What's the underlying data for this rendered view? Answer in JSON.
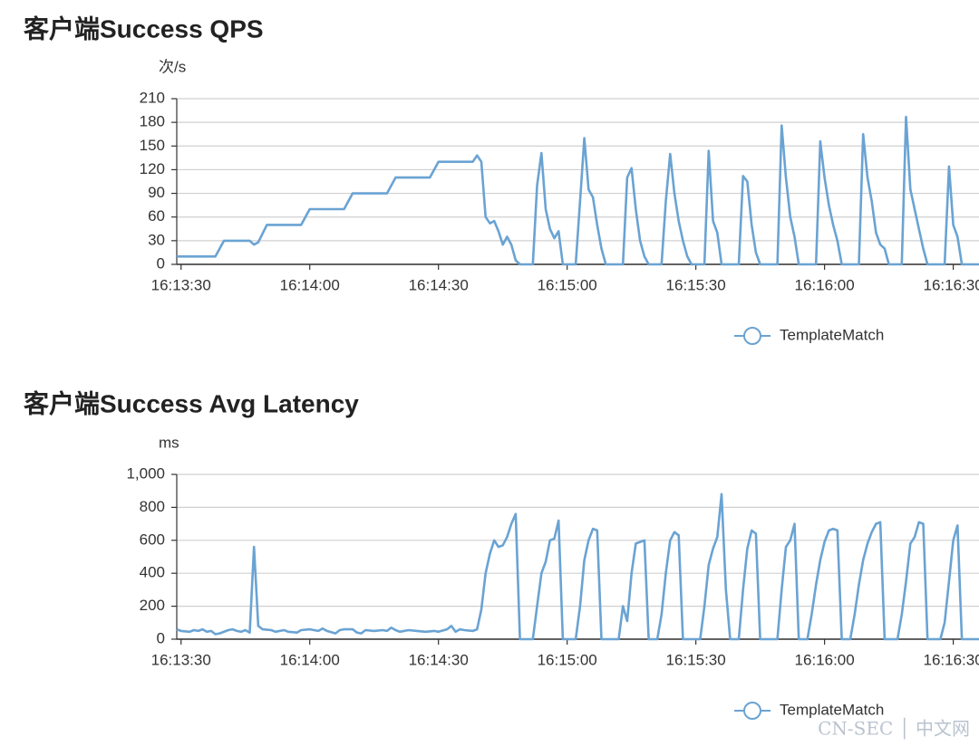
{
  "chart_data": [
    {
      "type": "line",
      "title": "客户端Success QPS",
      "ylabel": "次/s",
      "x": [
        "16:13:29",
        "16:13:38",
        "16:13:40",
        "16:13:46",
        "16:13:47",
        "16:13:48",
        "16:13:50",
        "16:13:58",
        "16:14:00",
        "16:14:08",
        "16:14:10",
        "16:14:18",
        "16:14:20",
        "16:14:28",
        "16:14:30",
        "16:14:38",
        "16:14:39",
        "16:14:40",
        "16:14:41",
        "16:14:42",
        "16:14:43",
        "16:14:44",
        "16:14:45",
        "16:14:46",
        "16:14:47",
        "16:14:48",
        "16:14:49",
        "16:14:52",
        "16:14:53",
        "16:14:54",
        "16:14:55",
        "16:14:56",
        "16:14:57",
        "16:14:58",
        "16:14:59",
        "16:15:02",
        "16:15:03",
        "16:15:04",
        "16:15:05",
        "16:15:06",
        "16:15:07",
        "16:15:08",
        "16:15:09",
        "16:15:13",
        "16:15:14",
        "16:15:15",
        "16:15:16",
        "16:15:17",
        "16:15:18",
        "16:15:19",
        "16:15:22",
        "16:15:23",
        "16:15:24",
        "16:15:25",
        "16:15:26",
        "16:15:27",
        "16:15:28",
        "16:15:29",
        "16:15:32",
        "16:15:33",
        "16:15:34",
        "16:15:35",
        "16:15:36",
        "16:15:40",
        "16:15:41",
        "16:15:42",
        "16:15:43",
        "16:15:44",
        "16:15:45",
        "16:15:49",
        "16:15:50",
        "16:15:51",
        "16:15:52",
        "16:15:53",
        "16:15:54",
        "16:15:58",
        "16:15:59",
        "16:16:00",
        "16:16:01",
        "16:16:02",
        "16:16:03",
        "16:16:04",
        "16:16:08",
        "16:16:09",
        "16:16:10",
        "16:16:11",
        "16:16:12",
        "16:16:13",
        "16:16:14",
        "16:16:15",
        "16:16:18",
        "16:16:19",
        "16:16:20",
        "16:16:21",
        "16:16:22",
        "16:16:23",
        "16:16:24",
        "16:16:28",
        "16:16:29",
        "16:16:30",
        "16:16:31",
        "16:16:32",
        "16:16:36"
      ],
      "series": [
        {
          "name": "TemplateMatch",
          "color": "#6aa3d3",
          "values": [
            10,
            10,
            30,
            30,
            25,
            28,
            50,
            50,
            70,
            70,
            90,
            90,
            110,
            110,
            130,
            130,
            138,
            130,
            60,
            52,
            55,
            42,
            25,
            35,
            25,
            5,
            0,
            0,
            100,
            141,
            70,
            45,
            33,
            42,
            0,
            0,
            80,
            160,
            95,
            85,
            50,
            20,
            0,
            0,
            110,
            122,
            70,
            30,
            10,
            0,
            0,
            80,
            140,
            90,
            55,
            30,
            10,
            0,
            0,
            144,
            55,
            40,
            0,
            0,
            112,
            105,
            50,
            15,
            0,
            0,
            176,
            110,
            60,
            35,
            0,
            0,
            156,
            110,
            75,
            50,
            30,
            0,
            0,
            165,
            110,
            80,
            40,
            25,
            20,
            0,
            0,
            187,
            95,
            70,
            45,
            20,
            0,
            0,
            124,
            50,
            35,
            0,
            0
          ]
        }
      ],
      "xlim": [
        "16:13:29",
        "16:16:36"
      ],
      "xticks": [
        "16:13:30",
        "16:14:00",
        "16:14:30",
        "16:15:00",
        "16:15:30",
        "16:16:00",
        "16:16:30"
      ],
      "ylim": [
        0,
        210
      ],
      "yticks": [
        0,
        30,
        60,
        90,
        120,
        150,
        180,
        210
      ],
      "grid": true,
      "legend": "bottom-right"
    },
    {
      "type": "line",
      "title": "客户端Success Avg Latency",
      "ylabel": "ms",
      "x": [
        "16:13:29",
        "16:13:30",
        "16:13:32",
        "16:13:33",
        "16:13:34",
        "16:13:35",
        "16:13:36",
        "16:13:37",
        "16:13:38",
        "16:13:39",
        "16:13:41",
        "16:13:42",
        "16:13:43",
        "16:13:44",
        "16:13:45",
        "16:13:46",
        "16:13:47",
        "16:13:48",
        "16:13:49",
        "16:13:51",
        "16:13:52",
        "16:13:54",
        "16:13:55",
        "16:13:57",
        "16:13:58",
        "16:14:00",
        "16:14:01",
        "16:14:02",
        "16:14:03",
        "16:14:04",
        "16:14:06",
        "16:14:07",
        "16:14:08",
        "16:14:10",
        "16:14:11",
        "16:14:12",
        "16:14:13",
        "16:14:15",
        "16:14:17",
        "16:14:18",
        "16:14:19",
        "16:14:20",
        "16:14:21",
        "16:14:23",
        "16:14:25",
        "16:14:27",
        "16:14:29",
        "16:14:30",
        "16:14:32",
        "16:14:33",
        "16:14:34",
        "16:14:35",
        "16:14:36",
        "16:14:38",
        "16:14:39",
        "16:14:40",
        "16:14:41",
        "16:14:42",
        "16:14:43",
        "16:14:44",
        "16:14:45",
        "16:14:46",
        "16:14:47",
        "16:14:48",
        "16:14:49",
        "16:14:52",
        "16:14:53",
        "16:14:54",
        "16:14:55",
        "16:14:56",
        "16:14:57",
        "16:14:58",
        "16:14:59",
        "16:15:02",
        "16:15:03",
        "16:15:04",
        "16:15:05",
        "16:15:06",
        "16:15:07",
        "16:15:08",
        "16:15:12",
        "16:15:13",
        "16:15:14",
        "16:15:15",
        "16:15:16",
        "16:15:17",
        "16:15:18",
        "16:15:19",
        "16:15:21",
        "16:15:22",
        "16:15:23",
        "16:15:24",
        "16:15:25",
        "16:15:26",
        "16:15:27",
        "16:15:31",
        "16:15:32",
        "16:15:33",
        "16:15:34",
        "16:15:35",
        "16:15:36",
        "16:15:37",
        "16:15:38",
        "16:15:40",
        "16:15:41",
        "16:15:42",
        "16:15:43",
        "16:15:44",
        "16:15:45",
        "16:15:49",
        "16:15:50",
        "16:15:51",
        "16:15:52",
        "16:15:53",
        "16:15:54",
        "16:15:56",
        "16:15:57",
        "16:15:58",
        "16:15:59",
        "16:16:00",
        "16:16:01",
        "16:16:02",
        "16:16:03",
        "16:16:04",
        "16:16:06",
        "16:16:07",
        "16:16:08",
        "16:16:09",
        "16:16:10",
        "16:16:11",
        "16:16:12",
        "16:16:13",
        "16:16:14",
        "16:16:17",
        "16:16:18",
        "16:16:19",
        "16:16:20",
        "16:16:21",
        "16:16:22",
        "16:16:23",
        "16:16:24",
        "16:16:27",
        "16:16:28",
        "16:16:29",
        "16:16:30",
        "16:16:31",
        "16:16:32",
        "16:16:36"
      ],
      "series": [
        {
          "name": "TemplateMatch",
          "color": "#6aa3d3",
          "values": [
            60,
            50,
            45,
            55,
            50,
            60,
            45,
            50,
            30,
            35,
            55,
            60,
            50,
            45,
            55,
            40,
            560,
            80,
            60,
            55,
            45,
            55,
            45,
            40,
            55,
            60,
            55,
            50,
            65,
            50,
            35,
            55,
            60,
            60,
            40,
            35,
            55,
            50,
            55,
            50,
            70,
            55,
            45,
            55,
            50,
            45,
            50,
            45,
            60,
            80,
            45,
            60,
            55,
            50,
            60,
            180,
            400,
            520,
            600,
            560,
            570,
            620,
            700,
            760,
            0,
            0,
            200,
            400,
            470,
            600,
            610,
            720,
            0,
            0,
            200,
            480,
            600,
            670,
            660,
            0,
            0,
            200,
            110,
            400,
            580,
            590,
            600,
            0,
            0,
            150,
            400,
            600,
            650,
            630,
            0,
            0,
            200,
            450,
            550,
            620,
            880,
            300,
            0,
            0,
            300,
            550,
            660,
            640,
            0,
            0,
            300,
            560,
            600,
            700,
            0,
            0,
            150,
            330,
            480,
            590,
            660,
            670,
            660,
            0,
            0,
            150,
            330,
            480,
            580,
            650,
            700,
            710,
            0,
            0,
            150,
            350,
            580,
            620,
            710,
            700,
            0,
            0,
            100,
            350,
            600,
            690,
            0,
            0
          ]
        }
      ],
      "xlim": [
        "16:13:29",
        "16:16:36"
      ],
      "xticks": [
        "16:13:30",
        "16:14:00",
        "16:14:30",
        "16:15:00",
        "16:15:30",
        "16:16:00",
        "16:16:30"
      ],
      "ylim": [
        0,
        1000
      ],
      "yticks": [
        0,
        200,
        400,
        600,
        800,
        {
          "value": 1000,
          "label": "1,000"
        }
      ],
      "grid": true,
      "legend": "bottom-right"
    }
  ],
  "watermark": "CN-SEC │ 中文网"
}
